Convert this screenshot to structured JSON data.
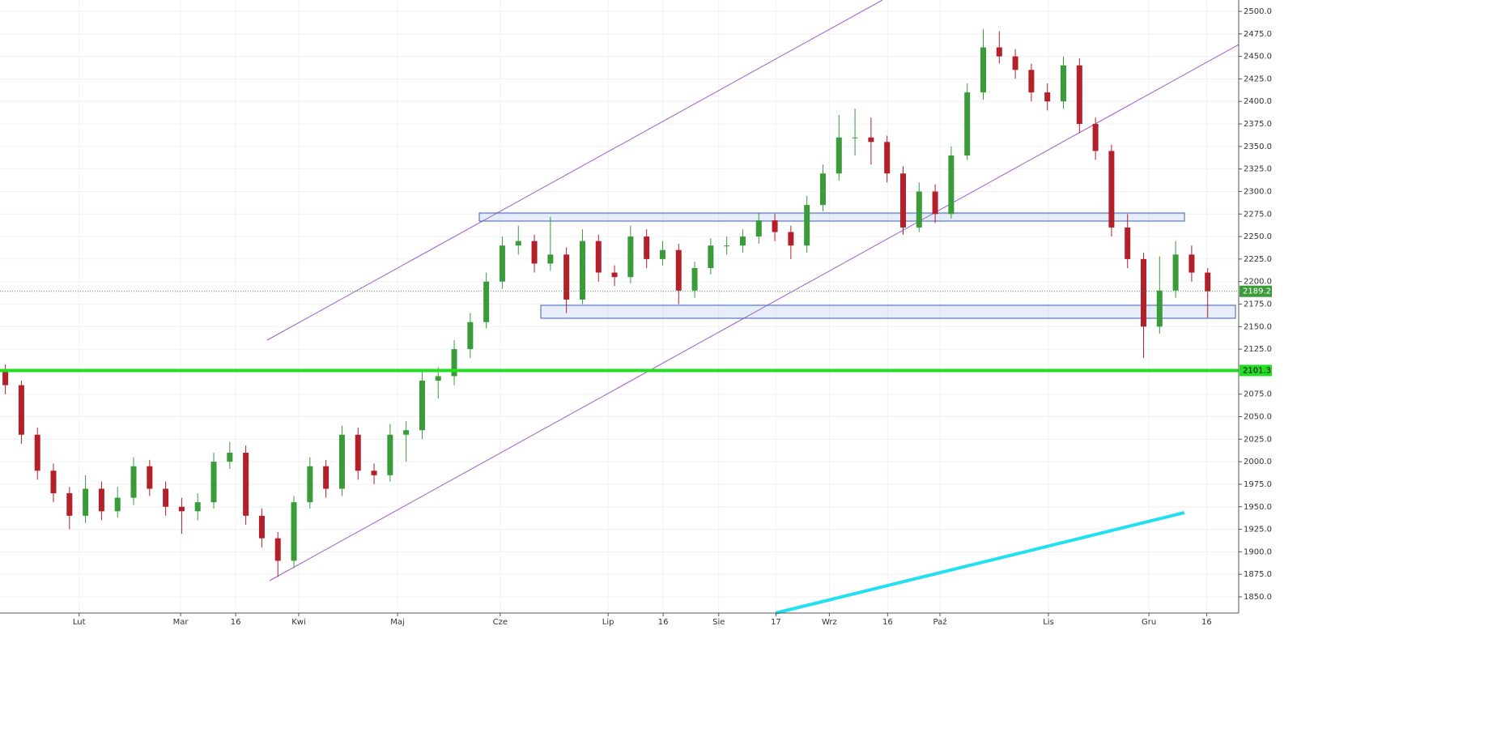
{
  "chart_data": {
    "type": "candlestick",
    "up_color": "#3a9b3a",
    "down_color": "#b3202a",
    "grid": true,
    "xlim": [
      0,
      231.8
    ],
    "ylim": [
      1832,
      2512.6
    ],
    "xticks": [
      {
        "value": 14.8,
        "label": "Lut"
      },
      {
        "value": 33.8,
        "label": "Mar"
      },
      {
        "value": 44.1,
        "label": "16"
      },
      {
        "value": 55.9,
        "label": "Kwi"
      },
      {
        "value": 74.4,
        "label": "Maj"
      },
      {
        "value": 93.6,
        "label": "Cze"
      },
      {
        "value": 113.8,
        "label": "Lip"
      },
      {
        "value": 124.1,
        "label": "16"
      },
      {
        "value": 134.5,
        "label": "Sie"
      },
      {
        "value": 145.2,
        "label": "17"
      },
      {
        "value": 155.2,
        "label": "Wrz"
      },
      {
        "value": 166.1,
        "label": "16"
      },
      {
        "value": 175.9,
        "label": "Paź"
      },
      {
        "value": 196.2,
        "label": "Lis"
      },
      {
        "value": 215,
        "label": "Gru"
      },
      {
        "value": 225.8,
        "label": "16"
      }
    ],
    "yticks": [
      {
        "value": 1850,
        "label": "1850.0"
      },
      {
        "value": 1875,
        "label": "1875.0"
      },
      {
        "value": 1900,
        "label": "1900.0"
      },
      {
        "value": 1925,
        "label": "1925.0"
      },
      {
        "value": 1950,
        "label": "1950.0"
      },
      {
        "value": 1975,
        "label": "1975.0"
      },
      {
        "value": 2000,
        "label": "2000.0"
      },
      {
        "value": 2025,
        "label": "2025.0"
      },
      {
        "value": 2050,
        "label": "2050.0"
      },
      {
        "value": 2075,
        "label": "2075.0"
      },
      {
        "value": 2125,
        "label": "2125.0"
      },
      {
        "value": 2150,
        "label": "2150.0"
      },
      {
        "value": 2175,
        "label": "2175.0"
      },
      {
        "value": 2200,
        "label": "2200.0"
      },
      {
        "value": 2225,
        "label": "2225.0"
      },
      {
        "value": 2250,
        "label": "2250.0"
      },
      {
        "value": 2275,
        "label": "2275.0"
      },
      {
        "value": 2300,
        "label": "2300.0"
      },
      {
        "value": 2325,
        "label": "2325.0"
      },
      {
        "value": 2350,
        "label": "2350.0"
      },
      {
        "value": 2375,
        "label": "2375.0"
      },
      {
        "value": 2400,
        "label": "2400.0"
      },
      {
        "value": 2425,
        "label": "2425.0"
      },
      {
        "value": 2450,
        "label": "2450.0"
      },
      {
        "value": 2475,
        "label": "2475.0"
      },
      {
        "value": 2500,
        "label": "2500.0"
      }
    ],
    "levels": [
      {
        "value": 2101.3,
        "color": "#22dd22",
        "style": "solid"
      },
      {
        "value": 2189.2,
        "color": "#3a9b3a",
        "style": "dotted"
      }
    ],
    "x": [
      1,
      4,
      7,
      10,
      13,
      16,
      19,
      22,
      25,
      28,
      31,
      34,
      37,
      40,
      43,
      46,
      49,
      52,
      55,
      58,
      61,
      64,
      67,
      70,
      73,
      76,
      79,
      82,
      85,
      88,
      91,
      94,
      97,
      100,
      103,
      106,
      109,
      112,
      115,
      118,
      121,
      124,
      127,
      130,
      133,
      136,
      139,
      142,
      145,
      148,
      151,
      154,
      157,
      160,
      163,
      166,
      169,
      172,
      175,
      178,
      181,
      184,
      187,
      190,
      193,
      196,
      199,
      202,
      205,
      208,
      211,
      214,
      217,
      220,
      223,
      226
    ],
    "open": [
      2100,
      2085,
      2030,
      1990,
      1965,
      1940,
      1970,
      1945,
      1960,
      1995,
      1970,
      1950,
      1945,
      1955,
      2000,
      2010,
      1940,
      1915,
      1890,
      1955,
      1995,
      1970,
      2030,
      1990,
      1985,
      2030,
      2035,
      2090,
      2095,
      2125,
      2155,
      2200,
      2240,
      2245,
      2220,
      2230,
      2180,
      2245,
      2210,
      2205,
      2250,
      2225,
      2235,
      2190,
      2215,
      2240,
      2240,
      2250,
      2268,
      2255,
      2240,
      2285,
      2320,
      2360,
      2360,
      2355,
      2320,
      2260,
      2300,
      2275,
      2340,
      2410,
      2460,
      2450,
      2435,
      2410,
      2400,
      2440,
      2375,
      2345,
      2260,
      2225,
      2150,
      2190,
      2230,
      2210
    ],
    "high": [
      2108,
      2090,
      2038,
      1998,
      1972,
      1985,
      1978,
      1972,
      2005,
      2002,
      1978,
      1960,
      1965,
      2010,
      2022,
      2018,
      1948,
      1922,
      1962,
      2005,
      2002,
      2040,
      2038,
      1998,
      2042,
      2045,
      2100,
      2105,
      2135,
      2165,
      2210,
      2250,
      2262,
      2252,
      2272,
      2238,
      2258,
      2252,
      2218,
      2262,
      2258,
      2245,
      2242,
      2222,
      2248,
      2250,
      2258,
      2276,
      2275,
      2262,
      2295,
      2330,
      2385,
      2392,
      2382,
      2362,
      2328,
      2310,
      2308,
      2350,
      2420,
      2480,
      2478,
      2458,
      2442,
      2420,
      2450,
      2448,
      2382,
      2352,
      2275,
      2232,
      2228,
      2245,
      2240,
      2215
    ],
    "low": [
      2075,
      2020,
      1980,
      1955,
      1925,
      1932,
      1935,
      1938,
      1952,
      1962,
      1940,
      1920,
      1935,
      1948,
      1992,
      1930,
      1905,
      1872,
      1882,
      1948,
      1960,
      1962,
      1980,
      1975,
      1978,
      2000,
      2025,
      2070,
      2085,
      2115,
      2148,
      2192,
      2230,
      2210,
      2212,
      2165,
      2175,
      2200,
      2195,
      2198,
      2215,
      2218,
      2175,
      2182,
      2208,
      2230,
      2232,
      2242,
      2245,
      2225,
      2232,
      2278,
      2312,
      2340,
      2330,
      2310,
      2252,
      2255,
      2265,
      2270,
      2335,
      2402,
      2442,
      2425,
      2400,
      2390,
      2392,
      2365,
      2335,
      2250,
      2215,
      2115,
      2142,
      2182,
      2200,
      2160
    ],
    "close": [
      2085,
      2030,
      1990,
      1965,
      1940,
      1970,
      1945,
      1960,
      1995,
      1970,
      1950,
      1945,
      1955,
      2000,
      2010,
      1940,
      1915,
      1890,
      1955,
      1995,
      1970,
      2030,
      1990,
      1985,
      2030,
      2035,
      2090,
      2095,
      2125,
      2155,
      2200,
      2240,
      2245,
      2220,
      2230,
      2180,
      2245,
      2210,
      2205,
      2250,
      2225,
      2235,
      2190,
      2215,
      2240,
      2240,
      2250,
      2268,
      2255,
      2240,
      2285,
      2320,
      2360,
      2360,
      2355,
      2320,
      2260,
      2300,
      2275,
      2340,
      2410,
      2460,
      2450,
      2435,
      2410,
      2400,
      2440,
      2375,
      2345,
      2260,
      2225,
      2150,
      2190,
      2230,
      2210,
      2189.2
    ]
  }
}
